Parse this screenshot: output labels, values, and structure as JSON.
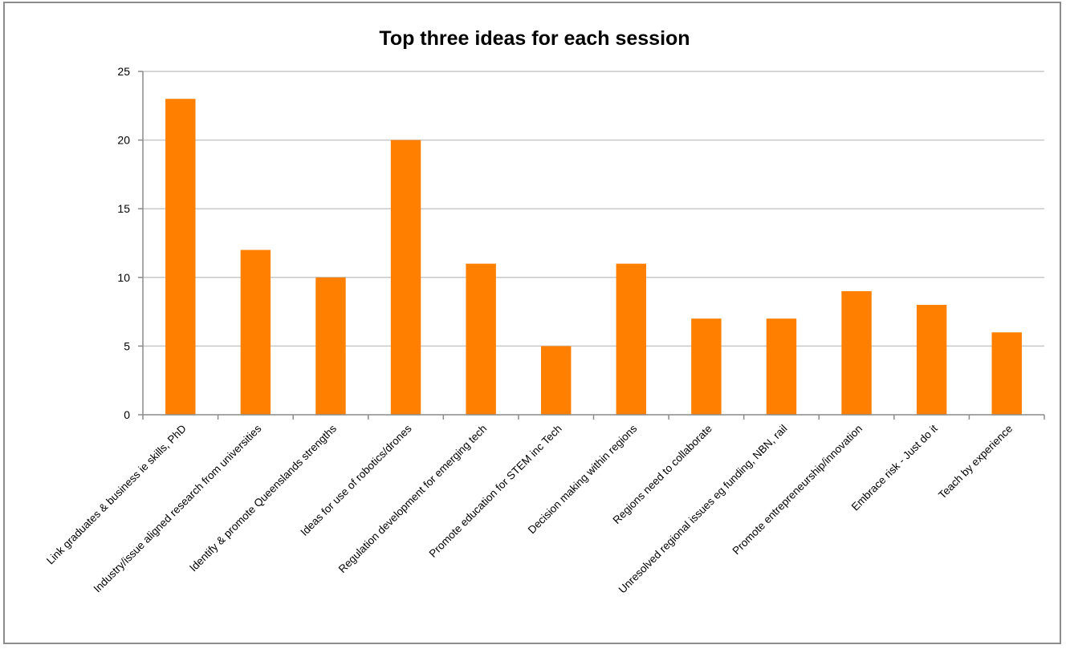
{
  "chart_data": {
    "type": "bar",
    "title": "Top three ideas for each session",
    "xlabel": "",
    "ylabel": "",
    "ylim": [
      0,
      25
    ],
    "yticks": [
      "0",
      "5",
      "10",
      "15",
      "20",
      "25"
    ],
    "grid": true,
    "legend": "none",
    "bar_color": "#ff8000",
    "categories": [
      "Link graduates & business ie skills, PhD",
      "Industry/issue aligned research from universities",
      "Identify & promote Queenslands strengths",
      "Ideas for use of robotics/drones",
      "Regulation development for emerging tech",
      "Promote education for STEM inc Tech",
      "Decision making within regions",
      "Regions need to collaborate",
      "Unresolved regional issues eg funding, NBN, rail",
      "Promote entrepreneurship/innovation",
      "Embrace risk - Just do it",
      "Teach by experience"
    ],
    "values": [
      23,
      12,
      10,
      20,
      11,
      5,
      11,
      7,
      7,
      9,
      8,
      6
    ]
  }
}
